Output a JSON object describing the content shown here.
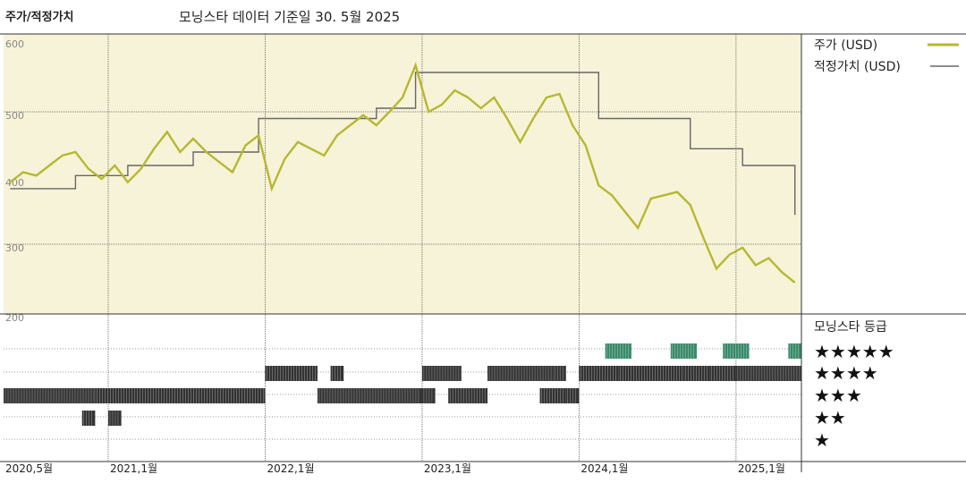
{
  "header": {
    "title": "주가/적정가치",
    "subtitle": "모닝스타 데이터 기준일 30. 5월 2025"
  },
  "legend": {
    "price_label": "주가 (USD)",
    "fair_label": "적정가치 (USD)",
    "rating_title": "모닝스타 등급",
    "rating_rows": [
      "★★★★★",
      "★★★★",
      "★★★",
      "★★",
      "★"
    ]
  },
  "colors": {
    "price": "#b5b832",
    "fair": "#666666",
    "upper_bg": "#f7f3d8",
    "star5": "#3a8a6a",
    "star_other": "#333333"
  },
  "chart_data": {
    "type": "line",
    "y_ticks": [
      "600",
      "500",
      "400",
      "300",
      "200"
    ],
    "ylim": [
      200,
      600
    ],
    "x_ticks": [
      "2020,5월",
      "2021,1월",
      "2022,1월",
      "2023,1월",
      "2024,1월",
      "2025,1월"
    ],
    "x_range": [
      "2020-05",
      "2025-05"
    ],
    "series": [
      {
        "name": "주가 (USD)",
        "points": [
          [
            "2020-05",
            395
          ],
          [
            "2020-06",
            410
          ],
          [
            "2020-07",
            405
          ],
          [
            "2020-08",
            420
          ],
          [
            "2020-09",
            435
          ],
          [
            "2020-10",
            440
          ],
          [
            "2020-11",
            415
          ],
          [
            "2020-12",
            400
          ],
          [
            "2021-01",
            420
          ],
          [
            "2021-02",
            395
          ],
          [
            "2021-03",
            415
          ],
          [
            "2021-04",
            445
          ],
          [
            "2021-05",
            470
          ],
          [
            "2021-06",
            440
          ],
          [
            "2021-07",
            460
          ],
          [
            "2021-08",
            440
          ],
          [
            "2021-09",
            425
          ],
          [
            "2021-10",
            410
          ],
          [
            "2021-11",
            450
          ],
          [
            "2021-12",
            465
          ],
          [
            "2022-01",
            385
          ],
          [
            "2022-02",
            430
          ],
          [
            "2022-03",
            455
          ],
          [
            "2022-04",
            445
          ],
          [
            "2022-05",
            435
          ],
          [
            "2022-06",
            465
          ],
          [
            "2022-07",
            480
          ],
          [
            "2022-08",
            495
          ],
          [
            "2022-09",
            480
          ],
          [
            "2022-10",
            500
          ],
          [
            "2022-11",
            520
          ],
          [
            "2022-12",
            565
          ],
          [
            "2023-01",
            500
          ],
          [
            "2023-02",
            510
          ],
          [
            "2023-03",
            530
          ],
          [
            "2023-04",
            520
          ],
          [
            "2023-05",
            505
          ],
          [
            "2023-06",
            520
          ],
          [
            "2023-07",
            490
          ],
          [
            "2023-08",
            455
          ],
          [
            "2023-09",
            490
          ],
          [
            "2023-10",
            520
          ],
          [
            "2023-11",
            525
          ],
          [
            "2023-12",
            480
          ],
          [
            "2024-01",
            450
          ],
          [
            "2024-02",
            390
          ],
          [
            "2024-03",
            375
          ],
          [
            "2024-04",
            350
          ],
          [
            "2024-05",
            325
          ],
          [
            "2024-06",
            370
          ],
          [
            "2024-07",
            375
          ],
          [
            "2024-08",
            380
          ],
          [
            "2024-09",
            360
          ],
          [
            "2024-10",
            310
          ],
          [
            "2024-11",
            265
          ],
          [
            "2024-12",
            285
          ],
          [
            "2025-01",
            295
          ],
          [
            "2025-02",
            270
          ],
          [
            "2025-03",
            280
          ],
          [
            "2025-04",
            260
          ],
          [
            "2025-05",
            245
          ]
        ]
      },
      {
        "name": "적정가치 (USD)",
        "points": [
          [
            "2020-05",
            385
          ],
          [
            "2020-10",
            385
          ],
          [
            "2020-10",
            405
          ],
          [
            "2021-02",
            405
          ],
          [
            "2021-02",
            420
          ],
          [
            "2021-07",
            420
          ],
          [
            "2021-07",
            440
          ],
          [
            "2021-12",
            440
          ],
          [
            "2021-12",
            490
          ],
          [
            "2022-09",
            490
          ],
          [
            "2022-09",
            505
          ],
          [
            "2022-12",
            505
          ],
          [
            "2022-12",
            555
          ],
          [
            "2024-02",
            555
          ],
          [
            "2024-02",
            490
          ],
          [
            "2024-09",
            490
          ],
          [
            "2024-09",
            445
          ],
          [
            "2025-01",
            445
          ],
          [
            "2025-01",
            420
          ],
          [
            "2025-05",
            420
          ],
          [
            "2025-05",
            345
          ]
        ]
      }
    ],
    "rating_bands": [
      {
        "stars": 5,
        "ranges": [
          [
            "2024-03",
            "2024-04"
          ],
          [
            "2024-08",
            "2024-09"
          ],
          [
            "2024-12",
            "2025-01"
          ],
          [
            "2025-05",
            "2025-05"
          ]
        ]
      },
      {
        "stars": 4,
        "ranges": [
          [
            "2022-01",
            "2022-04"
          ],
          [
            "2022-06",
            "2022-06"
          ],
          [
            "2023-01",
            "2023-03"
          ],
          [
            "2023-06",
            "2023-10"
          ],
          [
            "2023-11",
            "2023-11"
          ],
          [
            "2024-01",
            "2024-03"
          ],
          [
            "2024-04",
            "2024-08"
          ],
          [
            "2024-09",
            "2024-10"
          ],
          [
            "2024-11",
            "2024-12"
          ],
          [
            "2025-01",
            "2025-05"
          ]
        ]
      },
      {
        "stars": 3,
        "ranges": [
          [
            "2020-05",
            "2020-11"
          ],
          [
            "2020-12",
            "2021-12"
          ],
          [
            "2022-05",
            "2022-12"
          ],
          [
            "2023-01",
            "2023-01"
          ],
          [
            "2023-03",
            "2023-05"
          ],
          [
            "2023-10",
            "2023-11"
          ],
          [
            "2023-12",
            "2023-12"
          ]
        ]
      },
      {
        "stars": 2,
        "ranges": [
          [
            "2020-11",
            "2020-11"
          ],
          [
            "2021-01",
            "2021-01"
          ]
        ]
      }
    ]
  }
}
